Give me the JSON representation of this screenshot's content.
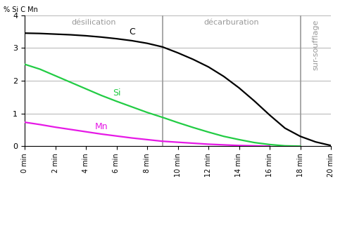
{
  "chart_data": {
    "type": "line",
    "y_label": "% Si C Mn",
    "x": [
      0,
      1,
      2,
      3,
      4,
      5,
      6,
      7,
      8,
      9,
      10,
      11,
      12,
      13,
      14,
      15,
      16,
      17,
      18,
      19,
      20
    ],
    "series": [
      {
        "name": "C",
        "color": "#000000",
        "values": [
          3.45,
          3.44,
          3.42,
          3.4,
          3.37,
          3.33,
          3.28,
          3.22,
          3.14,
          3.03,
          2.85,
          2.65,
          2.42,
          2.13,
          1.78,
          1.38,
          0.95,
          0.55,
          0.3,
          0.13,
          0.02
        ]
      },
      {
        "name": "Si",
        "color": "#22cc44",
        "values": [
          2.5,
          2.35,
          2.15,
          1.95,
          1.75,
          1.55,
          1.37,
          1.2,
          1.03,
          0.88,
          0.72,
          0.57,
          0.43,
          0.3,
          0.2,
          0.11,
          0.05,
          0.01,
          0,
          null,
          null
        ]
      },
      {
        "name": "Mn",
        "color": "#e619e6",
        "values": [
          0.73,
          0.66,
          0.58,
          0.51,
          0.44,
          0.37,
          0.31,
          0.25,
          0.2,
          0.15,
          0.12,
          0.09,
          0.06,
          0.04,
          0.02,
          0.01,
          0,
          null,
          null,
          null,
          null
        ]
      }
    ],
    "phases": [
      {
        "label": "désilication",
        "start": 0,
        "end": 9
      },
      {
        "label": "décarburation",
        "start": 9,
        "end": 18
      },
      {
        "label": "sur-soufflage",
        "start": 18,
        "end": 20
      }
    ],
    "xlim": [
      0,
      20
    ],
    "ylim": [
      0,
      4
    ],
    "xticks": [
      {
        "value": 0,
        "label": "0 min"
      },
      {
        "value": 2,
        "label": "2 min"
      },
      {
        "value": 4,
        "label": "4 min"
      },
      {
        "value": 6,
        "label": "6 min"
      },
      {
        "value": 8,
        "label": "8 min"
      },
      {
        "value": 10,
        "label": "10 min"
      },
      {
        "value": 12,
        "label": "12 min"
      },
      {
        "value": 14,
        "label": "14 min"
      },
      {
        "value": 16,
        "label": "16 min"
      },
      {
        "value": 18,
        "label": "18 min"
      },
      {
        "value": 20,
        "label": "20 min"
      }
    ],
    "yticks": [
      0,
      1,
      2,
      3,
      4
    ],
    "grid": true
  }
}
